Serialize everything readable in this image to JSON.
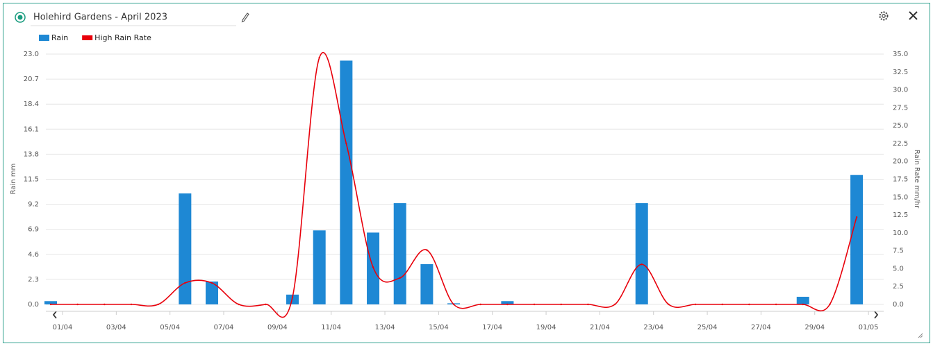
{
  "chart_data": {
    "type": "bar",
    "title": "Holehird Gardens - April 2023",
    "ylabel": "Rain mm",
    "y2label": "Rain Rate mm/hr",
    "categories": [
      "01/04",
      null,
      "03/04",
      null,
      "05/04",
      null,
      "07/04",
      null,
      "09/04",
      null,
      "11/04",
      null,
      "13/04",
      null,
      "15/04",
      null,
      "17/04",
      null,
      "19/04",
      null,
      "21/04",
      null,
      "23/04",
      null,
      "25/04",
      null,
      "27/04",
      null,
      "29/04",
      null,
      "01/05"
    ],
    "series": [
      {
        "name": "Rain",
        "color": "#1e88d4",
        "values": [
          0.3,
          0,
          0,
          0,
          0,
          10.2,
          2.1,
          0,
          0,
          0.9,
          6.8,
          22.4,
          6.6,
          9.3,
          3.7,
          0.1,
          0,
          0.3,
          0,
          0,
          0,
          0,
          9.3,
          0,
          0,
          0,
          0,
          0,
          0.7,
          0,
          11.9
        ]
      },
      {
        "name": "High Rain Rate",
        "color": "#e8000b",
        "type": "line",
        "axis": "y2",
        "values": [
          0,
          0,
          0,
          0,
          0,
          3.0,
          3.0,
          0,
          0,
          1.0,
          34.5,
          22.5,
          5.2,
          3.7,
          7.6,
          0,
          0,
          0,
          0,
          0,
          0,
          0,
          5.6,
          0,
          0,
          0,
          0,
          0,
          0,
          0,
          12.2
        ]
      }
    ],
    "ylim": [
      0,
      23
    ],
    "yticks": [
      {
        "value": 0,
        "label": "0.0"
      },
      2.3,
      4.6,
      6.9,
      9.2,
      11.5,
      13.8,
      16.1,
      18.4,
      20.7,
      {
        "value": 23,
        "label": "23.0"
      }
    ],
    "y2lim": [
      0,
      35
    ],
    "y2ticks": [
      {
        "value": 0,
        "label": "0.0"
      },
      2.5,
      {
        "value": 5,
        "label": "5.0"
      },
      7.5,
      {
        "value": 10,
        "label": "10.0"
      },
      12.5,
      {
        "value": 15,
        "label": "15.0"
      },
      17.5,
      {
        "value": 20,
        "label": "20.0"
      },
      22.5,
      {
        "value": 25,
        "label": "25.0"
      },
      27.5,
      {
        "value": 30,
        "label": "30.0"
      },
      32.5,
      {
        "value": 35,
        "label": "35.0"
      }
    ],
    "grid": true
  }
}
